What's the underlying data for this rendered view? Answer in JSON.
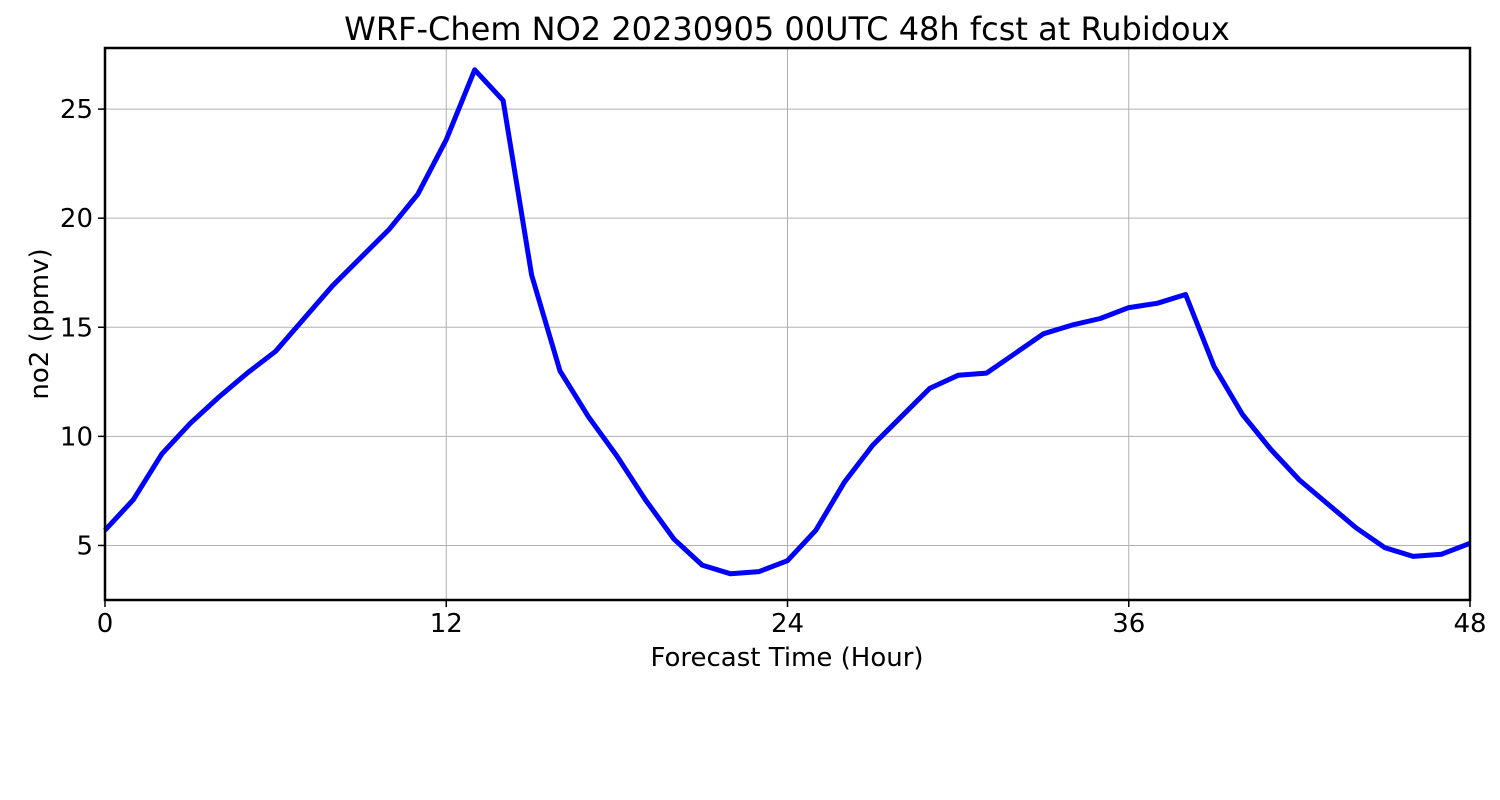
{
  "chart_data": {
    "type": "line",
    "title": "WRF-Chem NO2  20230905 00UTC 48h fcst at Rubidoux",
    "xlabel": "Forecast Time (Hour)",
    "ylabel": "no2  (ppmv)",
    "xlim": [
      0,
      48
    ],
    "ylim": [
      2.5,
      27.8
    ],
    "x_ticks": [
      0,
      12,
      24,
      36,
      48
    ],
    "y_ticks": [
      5,
      10,
      15,
      20,
      25
    ],
    "grid": true,
    "series": [
      {
        "color": "#0000ff",
        "x": [
          0,
          1,
          2,
          3,
          4,
          5,
          6,
          7,
          8,
          9,
          10,
          11,
          12,
          13,
          14,
          15,
          16,
          17,
          18,
          19,
          20,
          21,
          22,
          23,
          24,
          25,
          26,
          27,
          28,
          29,
          30,
          31,
          32,
          33,
          34,
          35,
          36,
          37,
          38,
          39,
          40,
          41,
          42,
          43,
          44,
          45,
          46,
          47,
          48
        ],
        "values": [
          5.7,
          7.1,
          9.2,
          10.6,
          11.8,
          12.9,
          13.9,
          15.4,
          16.9,
          18.2,
          19.5,
          21.1,
          23.6,
          26.8,
          25.4,
          17.4,
          13.0,
          10.9,
          9.1,
          7.1,
          5.3,
          4.1,
          3.7,
          3.8,
          4.3,
          5.7,
          7.9,
          9.6,
          10.9,
          12.2,
          12.8,
          12.9,
          13.8,
          14.7,
          15.1,
          15.4,
          15.9,
          16.1,
          16.5,
          13.2,
          11.0,
          9.4,
          8.0,
          6.9,
          5.8,
          4.9,
          4.5,
          4.6,
          5.1
        ]
      }
    ]
  }
}
